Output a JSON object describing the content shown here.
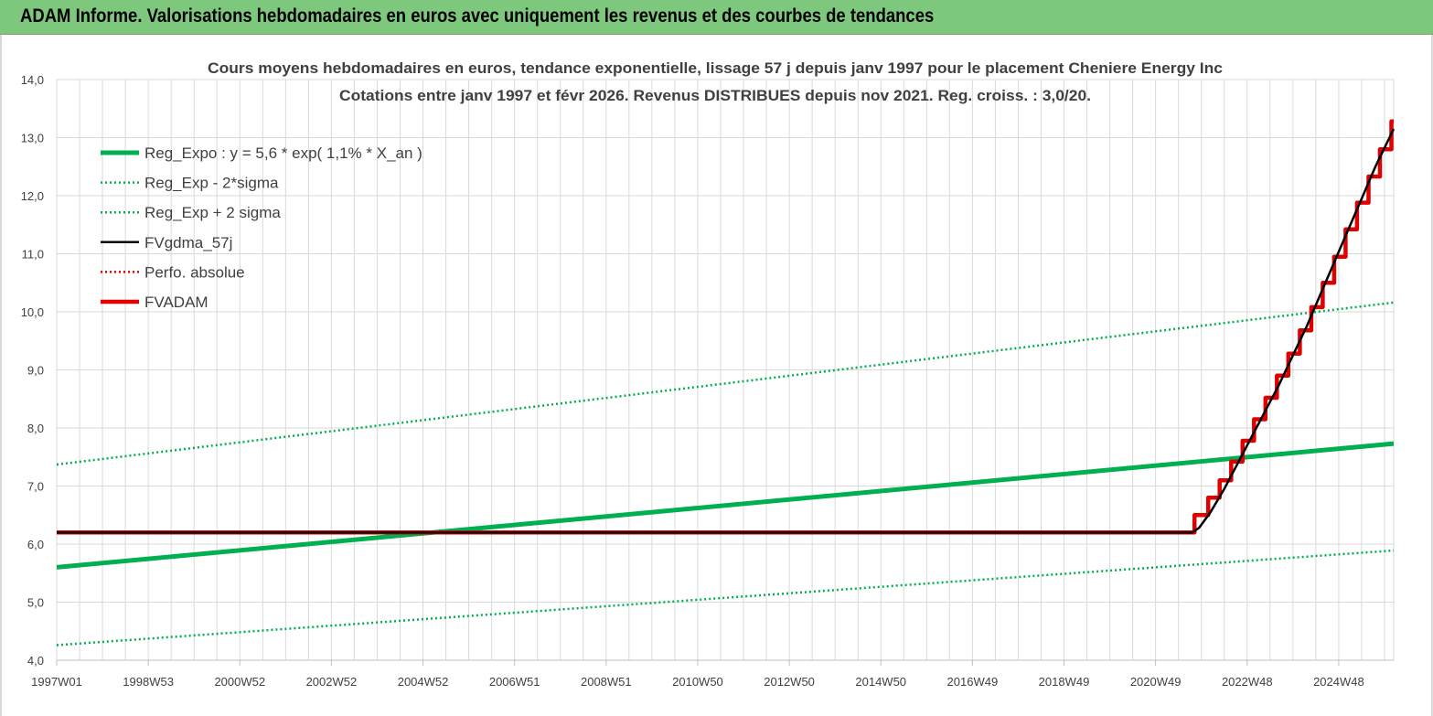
{
  "header": {
    "title": "ADAM Informe. Valorisations hebdomadaires en euros avec uniquement les revenus et des courbes de tendances"
  },
  "chart_data": {
    "type": "line",
    "title_line1": "Cours moyens hebdomadaires en euros, tendance exponentielle, lissage 57 j depuis janv 1997 pour le placement Cheniere Energy Inc",
    "title_line2": "Cotations entre janv 1997 et févr 2026. Revenus DISTRIBUES depuis nov 2021. Reg. croiss. : 3,0/20.",
    "x_ticks": [
      "1997W01",
      "1998W53",
      "2000W52",
      "2002W52",
      "2004W52",
      "2006W51",
      "2008W51",
      "2010W50",
      "2012W50",
      "2014W50",
      "2016W49",
      "2018W49",
      "2020W49",
      "2022W48",
      "2024W48"
    ],
    "y_ticks": [
      "4,0",
      "5,0",
      "6,0",
      "7,0",
      "8,0",
      "9,0",
      "10,0",
      "11,0",
      "12,0",
      "13,0",
      "14,0"
    ],
    "ylim": [
      4.0,
      14.0
    ],
    "xlim_years": [
      1997.0,
      2026.2
    ],
    "grid": true,
    "legend_position": "top-left",
    "colors": {
      "green": "#00b050",
      "black": "#000000",
      "red": "#e00000",
      "grid": "#d9d9d9",
      "title_bar": "#7ec87e"
    },
    "series": [
      {
        "name": "Reg_Expo : y = 5,6 * exp( 1,1% *  X_an )",
        "style": "solid-thick",
        "color": "#00b050",
        "x": [
          1997.0,
          2026.2
        ],
        "y": [
          5.6,
          7.73
        ]
      },
      {
        "name": "Reg_Exp - 2*sigma",
        "style": "dotted",
        "color": "#00b050",
        "x": [
          1997.0,
          2026.2
        ],
        "y": [
          4.26,
          5.89
        ]
      },
      {
        "name": "Reg_Exp + 2 sigma",
        "style": "dotted",
        "color": "#00b050",
        "x": [
          1997.0,
          2026.2
        ],
        "y": [
          7.37,
          10.16
        ]
      },
      {
        "name": "FVgdma_57j",
        "style": "solid",
        "color": "#000000",
        "x": [
          1997.0,
          2021.8,
          2021.95,
          2022.2,
          2022.5,
          2022.8,
          2023.1,
          2023.4,
          2023.7,
          2024.0,
          2024.3,
          2024.6,
          2024.9,
          2025.2,
          2025.5,
          2025.8,
          2026.2
        ],
        "y": [
          6.2,
          6.2,
          6.28,
          6.55,
          6.95,
          7.4,
          7.85,
          8.3,
          8.75,
          9.25,
          9.75,
          10.3,
          10.85,
          11.4,
          11.95,
          12.5,
          13.15
        ]
      },
      {
        "name": "Perfo. absolue",
        "style": "dotted",
        "color": "#e00000",
        "x": [
          1997.0,
          2021.8
        ],
        "y": [
          6.2,
          6.2
        ]
      },
      {
        "name": "FVADAM",
        "style": "solid-thick-steps",
        "color": "#e00000",
        "x": [
          1997.0,
          2021.85,
          2021.85,
          2022.15,
          2022.15,
          2022.4,
          2022.4,
          2022.65,
          2022.65,
          2022.9,
          2022.9,
          2023.15,
          2023.15,
          2023.4,
          2023.4,
          2023.65,
          2023.65,
          2023.9,
          2023.9,
          2024.15,
          2024.15,
          2024.4,
          2024.4,
          2024.65,
          2024.65,
          2024.9,
          2024.9,
          2025.15,
          2025.15,
          2025.4,
          2025.4,
          2025.65,
          2025.65,
          2025.9,
          2025.9,
          2026.15,
          2026.15,
          2026.2
        ],
        "y": [
          6.2,
          6.2,
          6.5,
          6.5,
          6.8,
          6.8,
          7.1,
          7.1,
          7.42,
          7.42,
          7.78,
          7.78,
          8.15,
          8.15,
          8.52,
          8.52,
          8.9,
          8.9,
          9.28,
          9.28,
          9.68,
          9.68,
          10.08,
          10.08,
          10.5,
          10.5,
          10.95,
          10.95,
          11.42,
          11.42,
          11.88,
          11.88,
          12.33,
          12.33,
          12.8,
          12.8,
          13.28,
          13.28
        ]
      }
    ]
  }
}
